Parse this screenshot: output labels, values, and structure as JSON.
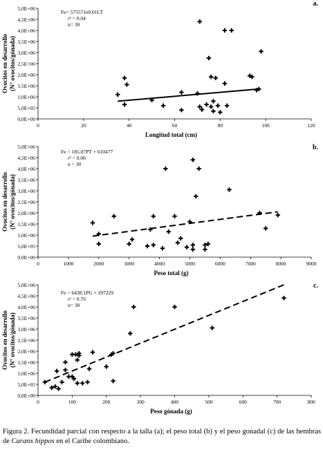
{
  "chart_data": [
    {
      "type": "scatter",
      "panel": "a.",
      "xlabel": "Longitud total (cm)",
      "ylabel": [
        "Ovocitos en desarrollo",
        "(N° ovocitos/gónada)"
      ],
      "xlim": [
        0,
        120
      ],
      "ylim": [
        0,
        5000000
      ],
      "xticks": [
        "0",
        "20",
        "40",
        "60",
        "80",
        "100",
        "120"
      ],
      "yticks": [
        "0,0E+00",
        "5,0E+05",
        "1,0E+06",
        "1,5E+06",
        "2,0E+06",
        "2,5E+06",
        "3,0E+06",
        "3,5E+06",
        "4,0E+06",
        "4,5E+06",
        "5,0E+06"
      ],
      "annotation": [
        "Fe= 575571e0.01LT",
        "r² = 0.04",
        "n= 30"
      ],
      "trend": {
        "style": "solid",
        "x": [
          35,
          97
        ],
        "y": [
          800000,
          1350000
        ]
      },
      "points": [
        [
          35,
          1100000
        ],
        [
          38,
          1850000
        ],
        [
          38,
          650000
        ],
        [
          39,
          1550000
        ],
        [
          50,
          850000
        ],
        [
          55,
          600000
        ],
        [
          63,
          1200000
        ],
        [
          63,
          400000
        ],
        [
          70,
          1150000
        ],
        [
          71,
          4400000
        ],
        [
          71,
          550000
        ],
        [
          72,
          420000
        ],
        [
          74,
          650000
        ],
        [
          75,
          2750000
        ],
        [
          76,
          1900000
        ],
        [
          76,
          550000
        ],
        [
          77,
          350000
        ],
        [
          77,
          800000
        ],
        [
          78,
          1850000
        ],
        [
          79,
          600000
        ],
        [
          80,
          300000
        ],
        [
          82,
          4000000
        ],
        [
          82,
          1600000
        ],
        [
          83,
          600000
        ],
        [
          85,
          4000000
        ],
        [
          93,
          1950000
        ],
        [
          94,
          1900000
        ],
        [
          96,
          1300000
        ],
        [
          98,
          3050000
        ],
        [
          97,
          1350000
        ]
      ],
      "grid": false
    },
    {
      "type": "scatter",
      "panel": "b.",
      "xlabel": "Peso total (g)",
      "ylabel": [
        "Ovocitos en desarrollo",
        "(N° ovocitos/gónada)"
      ],
      "xlim": [
        0,
        9000
      ],
      "ylim": [
        0,
        5000000
      ],
      "xticks": [
        "0",
        "1000",
        "2000",
        "3000",
        "4000",
        "5000",
        "6000",
        "7000",
        "8000",
        "9000"
      ],
      "yticks": [
        "0,0E+00",
        "5,0E+05",
        "1,0E+06",
        "1,5E+06",
        "2,0E+06",
        "2,5E+06",
        "3,0E+06",
        "3,5E+06",
        "4,0E+06",
        "4,5E+06",
        "5,0E+06"
      ],
      "annotation": [
        "Fe = 185.07PT + 610477",
        "r² = 0.06",
        "n = 30"
      ],
      "trend": {
        "style": "dashed",
        "x": [
          1800,
          7900
        ],
        "y": [
          950000,
          2050000
        ]
      },
      "points": [
        [
          1800,
          1550000
        ],
        [
          2000,
          1050000
        ],
        [
          2000,
          600000
        ],
        [
          2500,
          1850000
        ],
        [
          3000,
          600000
        ],
        [
          3100,
          800000
        ],
        [
          3600,
          500000
        ],
        [
          3700,
          1250000
        ],
        [
          3800,
          1850000
        ],
        [
          3800,
          550000
        ],
        [
          4100,
          400000
        ],
        [
          4200,
          4000000
        ],
        [
          4300,
          1150000
        ],
        [
          4500,
          1850000
        ],
        [
          4600,
          650000
        ],
        [
          4700,
          850000
        ],
        [
          4900,
          450000
        ],
        [
          5000,
          1600000
        ],
        [
          5100,
          550000
        ],
        [
          5100,
          350000
        ],
        [
          5100,
          4400000
        ],
        [
          5200,
          2750000
        ],
        [
          5300,
          4000000
        ],
        [
          5500,
          350000
        ],
        [
          5500,
          550000
        ],
        [
          6300,
          3050000
        ],
        [
          7300,
          2000000
        ],
        [
          7500,
          1300000
        ],
        [
          7900,
          1900000
        ],
        [
          5600,
          600000
        ]
      ],
      "grid": false
    },
    {
      "type": "scatter",
      "panel": "c.",
      "xlabel": "Peso gónada (g)",
      "ylabel": [
        "Ovocitos en desarrollo",
        "(N° ovocitos/gónada)"
      ],
      "xlim": [
        0,
        800
      ],
      "ylim": [
        0,
        5000000
      ],
      "xticks": [
        "0",
        "100",
        "200",
        "300",
        "400",
        "500",
        "600",
        "700",
        "800"
      ],
      "yticks": [
        "0,0E+00",
        "5,0E+05",
        "1,0E+06",
        "1,5E+06",
        "2,0E+06",
        "2,5E+06",
        "3,0E+06",
        "3,5E+06",
        "4,0E+06",
        "4,5E+06",
        "5,0E+06"
      ],
      "annotation": [
        "Fe = 6438.1PG + 397229",
        "r² = 0.70",
        "n= 30"
      ],
      "trend": {
        "style": "dashed",
        "x": [
          20,
          720
        ],
        "y": [
          600000,
          5000000
        ]
      },
      "points": [
        [
          20,
          600000
        ],
        [
          40,
          350000
        ],
        [
          50,
          400000
        ],
        [
          55,
          1100000
        ],
        [
          60,
          300000
        ],
        [
          70,
          600000
        ],
        [
          80,
          1500000
        ],
        [
          80,
          1150000
        ],
        [
          90,
          850000
        ],
        [
          100,
          1850000
        ],
        [
          100,
          850000
        ],
        [
          110,
          1850000
        ],
        [
          115,
          550000
        ],
        [
          115,
          1600000
        ],
        [
          120,
          1800000
        ],
        [
          130,
          550000
        ],
        [
          145,
          600000
        ],
        [
          150,
          1200000
        ],
        [
          160,
          1950000
        ],
        [
          200,
          1300000
        ],
        [
          215,
          1850000
        ],
        [
          220,
          650000
        ],
        [
          270,
          2800000
        ],
        [
          280,
          4000000
        ],
        [
          400,
          4000000
        ],
        [
          510,
          3050000
        ],
        [
          720,
          4400000
        ],
        [
          120,
          1900000
        ],
        [
          105,
          750000
        ],
        [
          220,
          1900000
        ]
      ],
      "grid": false
    }
  ],
  "caption": {
    "prefix": "Figura 2. Fecundidad parcial con respecto a la talla (a); el peso total (b) y el peso gonadal (c) de las hembras de ",
    "species": "Caranx hippos",
    "suffix": " en el Caribe colombiano."
  }
}
